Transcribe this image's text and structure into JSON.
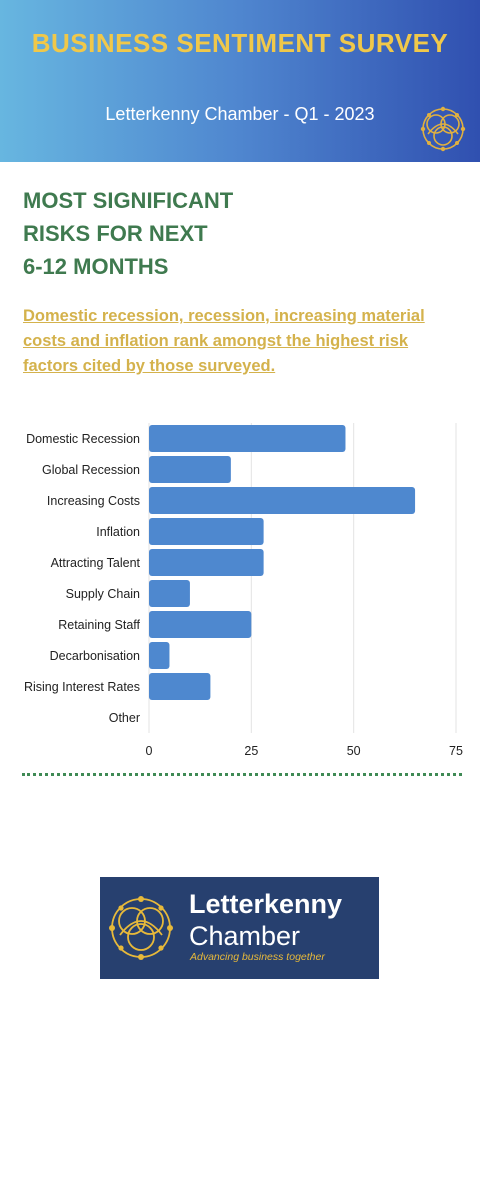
{
  "header": {
    "title": "BUSINESS SENTIMENT SURVEY",
    "subtitle": "Letterkenny Chamber - Q1 - 2023"
  },
  "section": {
    "heading": "MOST SIGNIFICANT\nRISKS FOR NEXT\n 6-12 MONTHS",
    "intro": "Domestic recession, recession, increasing material costs and inflation rank amongst the highest risk factors cited by those surveyed."
  },
  "chart_data": {
    "type": "bar",
    "orientation": "horizontal",
    "categories": [
      "Domestic Recession",
      "Global Recession",
      "Increasing Costs",
      "Inflation",
      "Attracting Talent",
      "Supply Chain",
      "Retaining Staff",
      "Decarbonisation",
      "Rising Interest Rates",
      "Other"
    ],
    "values": [
      48,
      20,
      65,
      28,
      28,
      10,
      25,
      5,
      15,
      0
    ],
    "xlim": [
      0,
      75
    ],
    "xticks": [
      0,
      25,
      50,
      75
    ],
    "grid": true,
    "legend": "none",
    "bar_color": "#4e88cf"
  },
  "footer": {
    "logo_name_line1": "Letterkenny",
    "logo_name_line2": "Chamber",
    "logo_tagline": "Advancing business together"
  },
  "colors": {
    "heading_green": "#3f7a4f",
    "gold": "#d4b24c",
    "header_title_gold": "#f0c84a",
    "logo_navy": "#27406f"
  }
}
